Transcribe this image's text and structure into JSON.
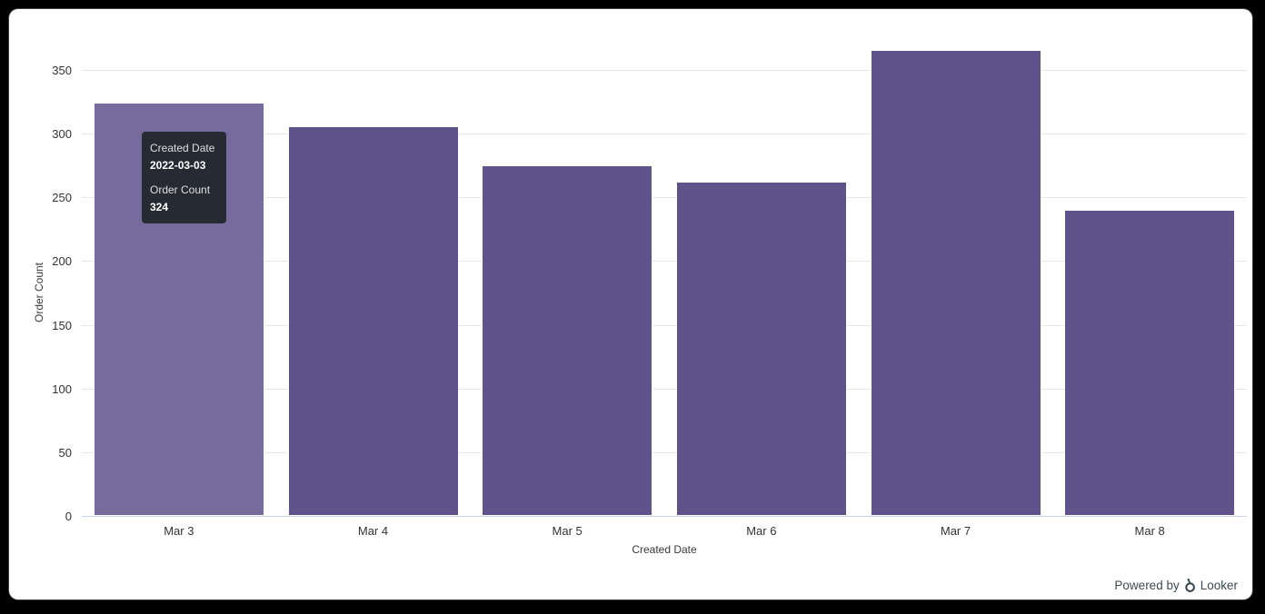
{
  "chart_data": {
    "type": "bar",
    "title": "",
    "categories": [
      "Mar 3",
      "Mar 4",
      "Mar 5",
      "Mar 6",
      "Mar 7",
      "Mar 8"
    ],
    "values": [
      324,
      306,
      275,
      262,
      366,
      240
    ],
    "xlabel": "Created Date",
    "ylabel": "Order Count",
    "ylim": [
      0,
      350
    ],
    "ytick_step": 50,
    "grid": true,
    "legend": "none",
    "hovered_index": 0,
    "colors": {
      "bar": "#5f538b",
      "bar_hover": "#776b9e",
      "bar_border": "#ffffff",
      "gridline": "#e6e6e6",
      "axis_line": "#ccd6eb",
      "tick_label": "#333333",
      "axis_title": "#38393d"
    }
  },
  "tooltip": {
    "bg": "#262b33",
    "field1_label": "Created Date",
    "field1_value": "2022-03-03",
    "field2_label": "Order Count",
    "field2_value": "324"
  },
  "footer": {
    "powered_by": "Powered by",
    "brand": "Looker",
    "text_color": "#3e4a52"
  }
}
